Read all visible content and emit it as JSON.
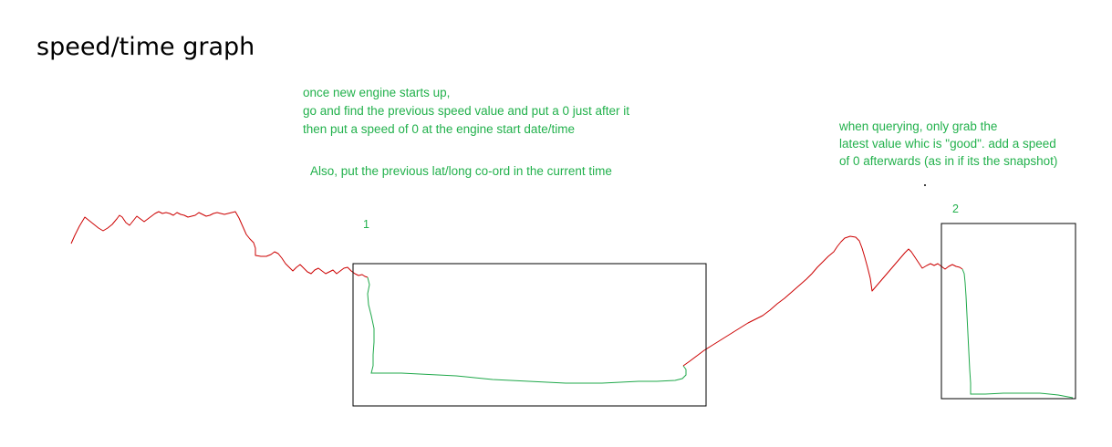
{
  "title": "speed/time graph",
  "colors": {
    "annotation_text": "#22b14c",
    "speed_line_normal": "#cc0000",
    "speed_line_fixed": "#1fa84a",
    "box_border": "#000000",
    "background": "#ffffff"
  },
  "notes": {
    "engine_start": [
      "once new engine starts up,",
      "go and find the previous speed value and put a 0 just after it",
      "then put a speed of 0 at the engine start date/time"
    ],
    "latlong": "Also, put the previous lat/long co-ord in the current time",
    "query": [
      "when querying, only grab the",
      "latest value whic is \"good\". add a speed",
      "of 0 afterwards (as in if its the snapshot)"
    ]
  },
  "boxes": [
    {
      "label": "1"
    },
    {
      "label": "2"
    }
  ]
}
